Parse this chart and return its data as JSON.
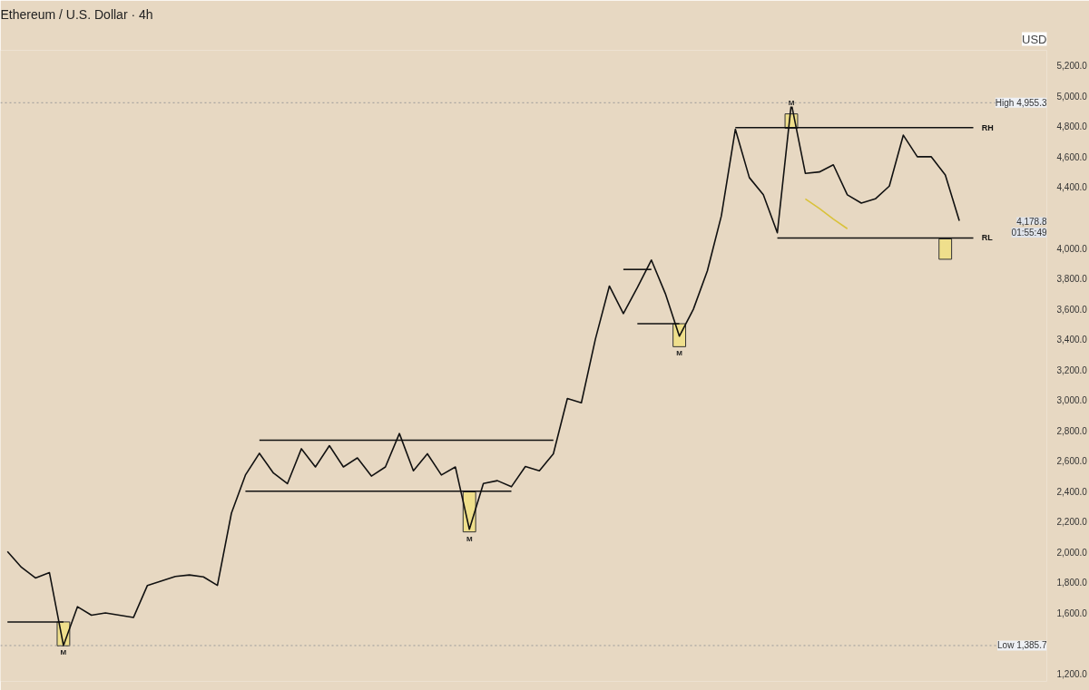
{
  "chart_data": {
    "type": "line",
    "title": "Ethereum / U.S. Dollar · 4h",
    "subtitle": "USD",
    "categories": [
      null,
      null,
      null,
      null,
      null,
      null,
      null,
      null,
      null,
      null,
      null,
      null,
      null,
      null,
      null,
      null,
      null,
      null,
      null,
      null,
      null,
      null,
      null,
      null,
      null,
      null,
      null,
      null,
      null,
      null,
      null,
      null,
      null,
      null,
      null,
      null,
      null,
      null,
      null,
      null,
      null,
      null,
      null,
      null,
      null,
      null,
      null,
      null,
      null,
      null,
      null,
      null,
      null,
      null,
      null,
      null,
      null,
      null,
      null,
      null,
      null,
      null,
      null,
      null,
      null,
      null,
      null,
      null,
      null,
      null
    ],
    "ylim": [
      1150,
      5300
    ],
    "yticks": [
      {
        "value": 1200,
        "label": "1,200.0"
      },
      {
        "value": 1600,
        "label": "1,600.0"
      },
      {
        "value": 1800,
        "label": "1,800.0"
      },
      {
        "value": 2000,
        "label": "2,000.0"
      },
      {
        "value": 2200,
        "label": "2,200.0"
      },
      {
        "value": 2400,
        "label": "2,400.0"
      },
      {
        "value": 2600,
        "label": "2,600.0"
      },
      {
        "value": 2800,
        "label": "2,800.0"
      },
      {
        "value": 3000,
        "label": "3,000.0"
      },
      {
        "value": 3200,
        "label": "3,200.0"
      },
      {
        "value": 3400,
        "label": "3,400.0"
      },
      {
        "value": 3600,
        "label": "3,600.0"
      },
      {
        "value": 3800,
        "label": "3,800.0"
      },
      {
        "value": 4000,
        "label": "4,000.0"
      },
      {
        "value": 4400,
        "label": "4,400.0"
      },
      {
        "value": 4600,
        "label": "4,600.0"
      },
      {
        "value": 4800,
        "label": "4,800.0"
      },
      {
        "value": 5000,
        "label": "5,000.0"
      },
      {
        "value": 5200,
        "label": "5,200.0"
      }
    ],
    "tick_labels": "y",
    "series": [
      {
        "color": "#111111",
        "values": [
          2004,
          1900,
          1830,
          1865,
          1386,
          1641,
          1585,
          1600,
          1585,
          1570,
          1781,
          1810,
          1840,
          1850,
          1837,
          1781,
          2256,
          2507,
          2650,
          2520,
          2450,
          2680,
          2560,
          2700,
          2560,
          2620,
          2500,
          2560,
          2780,
          2535,
          2647,
          2507,
          2560,
          2150,
          2451,
          2470,
          2430,
          2563,
          2535,
          2647,
          3010,
          2982,
          3400,
          3750,
          3569,
          3740,
          3921,
          3700,
          3420,
          3597,
          3850,
          4211,
          4781,
          4463,
          4350,
          4100,
          4950,
          4491,
          4500,
          4547,
          4350,
          4295,
          4323,
          4407,
          4742,
          4600,
          4600,
          4480,
          4179,
          null
        ]
      },
      {
        "color": "#111111",
        "values": [
          1541,
          1541,
          1541,
          1541,
          1541,
          null,
          null,
          null,
          null,
          null,
          null,
          null,
          null,
          null,
          null,
          null,
          null,
          null,
          null,
          null,
          null,
          null,
          null,
          null,
          null,
          null,
          null,
          null,
          null,
          null,
          null,
          null,
          null,
          null,
          null,
          null,
          null,
          null,
          null,
          null,
          null,
          null,
          null,
          null,
          null,
          null,
          null,
          null,
          null,
          null,
          null,
          null,
          null,
          null,
          null,
          null,
          null,
          null,
          null,
          null,
          null,
          null,
          null,
          null,
          null,
          null,
          null,
          null,
          null,
          null
        ]
      },
      {
        "color": "#111111",
        "values": [
          null,
          null,
          null,
          null,
          null,
          null,
          null,
          null,
          null,
          null,
          null,
          null,
          null,
          null,
          null,
          null,
          null,
          null,
          2736,
          2736,
          2736,
          2736,
          2736,
          2736,
          2736,
          2736,
          2736,
          2736,
          2736,
          2736,
          2736,
          2736,
          2736,
          2736,
          2736,
          2736,
          2736,
          2736,
          2736,
          2736,
          null,
          null,
          null,
          null,
          null,
          null,
          null,
          null,
          null,
          null,
          null,
          null,
          null,
          null,
          null,
          null,
          null,
          null,
          null,
          null,
          null,
          null,
          null,
          null,
          null,
          null,
          null,
          null,
          null,
          null
        ]
      },
      {
        "color": "#111111",
        "values": [
          null,
          null,
          null,
          null,
          null,
          null,
          null,
          null,
          null,
          null,
          null,
          null,
          null,
          null,
          null,
          null,
          null,
          2401,
          2401,
          2401,
          2401,
          2401,
          2401,
          2401,
          2401,
          2401,
          2401,
          2401,
          2401,
          2401,
          2401,
          2401,
          2401,
          2401,
          2401,
          2401,
          2401,
          null,
          null,
          null,
          null,
          null,
          null,
          null,
          null,
          null,
          null,
          null,
          null,
          null,
          null,
          null,
          null,
          null,
          null,
          null,
          null,
          null,
          null,
          null,
          null,
          null,
          null,
          null,
          null,
          null,
          null,
          null,
          null,
          null
        ]
      },
      {
        "color": "#111111",
        "values": [
          null,
          null,
          null,
          null,
          null,
          null,
          null,
          null,
          null,
          null,
          null,
          null,
          null,
          null,
          null,
          null,
          null,
          null,
          null,
          null,
          null,
          null,
          null,
          null,
          null,
          null,
          null,
          null,
          null,
          null,
          null,
          null,
          null,
          null,
          null,
          null,
          null,
          null,
          null,
          null,
          null,
          null,
          null,
          null,
          3859,
          3859,
          3859,
          null,
          null,
          null,
          null,
          null,
          null,
          null,
          null,
          null,
          null,
          null,
          null,
          null,
          null,
          null,
          null,
          null,
          null,
          null,
          null,
          null,
          null,
          null
        ]
      },
      {
        "color": "#111111",
        "values": [
          null,
          null,
          null,
          null,
          null,
          null,
          null,
          null,
          null,
          null,
          null,
          null,
          null,
          null,
          null,
          null,
          null,
          null,
          null,
          null,
          null,
          null,
          null,
          null,
          null,
          null,
          null,
          null,
          null,
          null,
          null,
          null,
          null,
          null,
          null,
          null,
          null,
          null,
          null,
          null,
          null,
          null,
          null,
          null,
          null,
          3502,
          3502,
          3502,
          3502,
          null,
          null,
          null,
          null,
          null,
          null,
          null,
          null,
          null,
          null,
          null,
          null,
          null,
          null,
          null,
          null,
          null,
          null,
          null,
          null,
          null
        ]
      },
      {
        "name": "RH",
        "color": "#111111",
        "values": [
          null,
          null,
          null,
          null,
          null,
          null,
          null,
          null,
          null,
          null,
          null,
          null,
          null,
          null,
          null,
          null,
          null,
          null,
          null,
          null,
          null,
          null,
          null,
          null,
          null,
          null,
          null,
          null,
          null,
          null,
          null,
          null,
          null,
          null,
          null,
          null,
          null,
          null,
          null,
          null,
          null,
          null,
          null,
          null,
          null,
          null,
          null,
          null,
          null,
          null,
          null,
          null,
          4792,
          4792,
          4792,
          4792,
          4792,
          4792,
          4792,
          4792,
          4792,
          4792,
          4792,
          4792,
          4792,
          4792,
          4792,
          4792,
          4792,
          4792
        ]
      },
      {
        "name": "RL",
        "color": "#111111",
        "values": [
          null,
          null,
          null,
          null,
          null,
          null,
          null,
          null,
          null,
          null,
          null,
          null,
          null,
          null,
          null,
          null,
          null,
          null,
          null,
          null,
          null,
          null,
          null,
          null,
          null,
          null,
          null,
          null,
          null,
          null,
          null,
          null,
          null,
          null,
          null,
          null,
          null,
          null,
          null,
          null,
          null,
          null,
          null,
          null,
          null,
          null,
          null,
          null,
          null,
          null,
          null,
          null,
          null,
          null,
          null,
          4066,
          4066,
          4066,
          4066,
          4066,
          4066,
          4066,
          4066,
          4066,
          4066,
          4066,
          4066,
          4066,
          4066,
          4066
        ]
      },
      {
        "color": "#d9c23a",
        "values": [
          null,
          null,
          null,
          null,
          null,
          null,
          null,
          null,
          null,
          null,
          null,
          null,
          null,
          null,
          null,
          null,
          null,
          null,
          null,
          null,
          null,
          null,
          null,
          null,
          null,
          null,
          null,
          null,
          null,
          null,
          null,
          null,
          null,
          null,
          null,
          null,
          null,
          null,
          null,
          null,
          null,
          null,
          null,
          null,
          null,
          null,
          null,
          null,
          null,
          null,
          null,
          null,
          null,
          null,
          null,
          null,
          null,
          4323,
          4260,
          4190,
          4127,
          null,
          null,
          null,
          null,
          null,
          null,
          null,
          null,
          null
        ]
      },
      {
        "type": "bar",
        "color": "#efdf8c",
        "base": [
          null,
          null,
          null,
          null,
          1384,
          null,
          null,
          null,
          null,
          null,
          null,
          null,
          null,
          null,
          null,
          null,
          null,
          null,
          null,
          null,
          null,
          null,
          null,
          null,
          null,
          null,
          null,
          null,
          null,
          null,
          null,
          null,
          null,
          2133,
          null,
          null,
          null,
          null,
          null,
          null,
          null,
          null,
          null,
          null,
          null,
          null,
          null,
          null,
          3351,
          null,
          null,
          null,
          null,
          null,
          null,
          null,
          4787,
          null,
          null,
          null,
          null,
          null,
          null,
          null,
          null,
          null,
          null,
          3926,
          null,
          null
        ],
        "values": [
          null,
          null,
          null,
          null,
          157,
          null,
          null,
          null,
          null,
          null,
          null,
          null,
          null,
          null,
          null,
          null,
          null,
          null,
          null,
          null,
          null,
          null,
          null,
          null,
          null,
          null,
          null,
          null,
          null,
          null,
          null,
          null,
          null,
          263,
          null,
          null,
          null,
          null,
          null,
          null,
          null,
          null,
          null,
          null,
          null,
          null,
          null,
          null,
          151,
          null,
          null,
          null,
          null,
          null,
          null,
          null,
          95,
          null,
          null,
          null,
          null,
          null,
          null,
          null,
          null,
          null,
          null,
          134,
          null,
          null
        ],
        "value_labels": [
          null,
          null,
          null,
          null,
          "M",
          null,
          null,
          null,
          null,
          null,
          null,
          null,
          null,
          null,
          null,
          null,
          null,
          null,
          null,
          null,
          null,
          null,
          null,
          null,
          null,
          null,
          null,
          null,
          null,
          null,
          null,
          null,
          null,
          "M",
          null,
          null,
          null,
          null,
          null,
          null,
          null,
          null,
          null,
          null,
          null,
          null,
          null,
          null,
          "M",
          null,
          null,
          null,
          null,
          null,
          null,
          null,
          "M",
          null,
          null,
          null,
          null,
          null,
          null,
          null,
          null,
          null,
          null,
          null,
          null,
          null
        ]
      }
    ],
    "ref_lines": [
      {
        "axis": "y",
        "value": 4955.3,
        "label": "High 4,955.3",
        "color": "#999999",
        "line_style": "dotted"
      },
      {
        "axis": "y",
        "value": 1385.7,
        "label": "Low 1,385.7",
        "color": "#999999",
        "line_style": "dotted"
      }
    ],
    "annotations": [
      "4,178.8",
      "01:55:49"
    ]
  }
}
